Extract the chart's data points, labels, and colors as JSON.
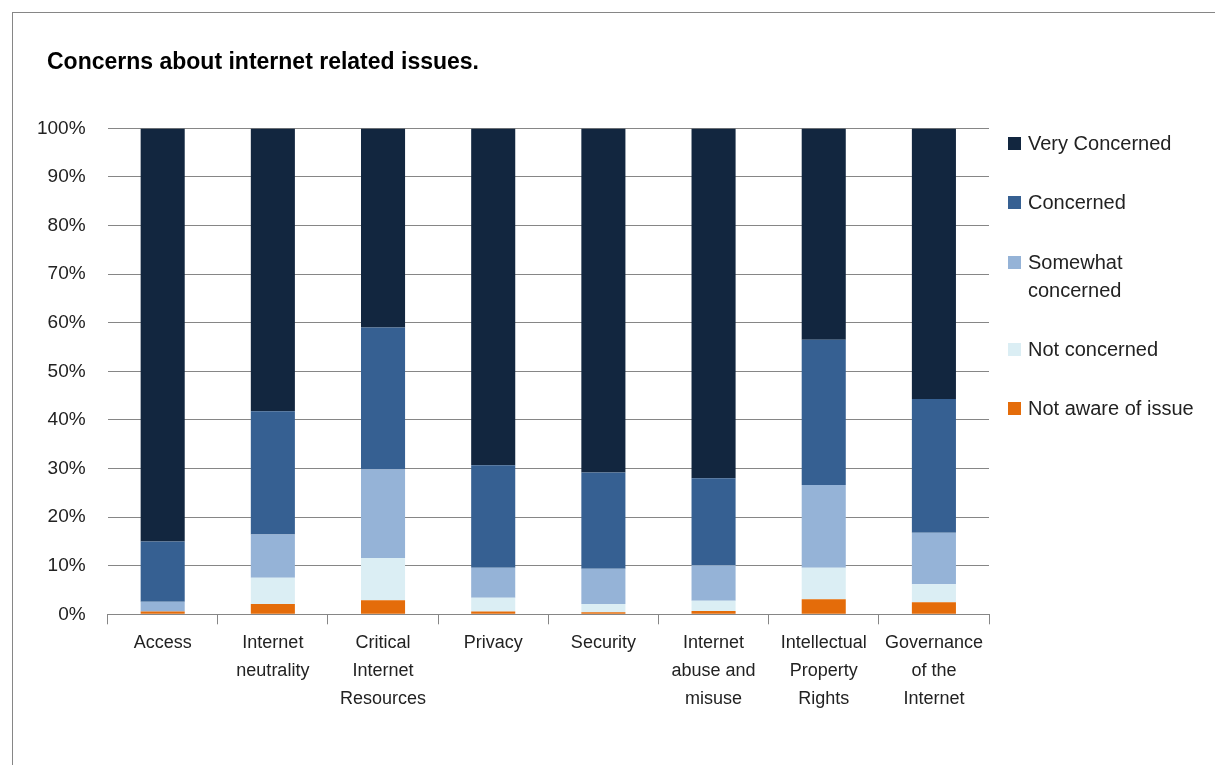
{
  "chart_data": {
    "type": "bar",
    "title": "Concerns about internet related issues.",
    "categories": [
      "Access",
      "Internet neutrality",
      "Critical Internet Resources",
      "Privacy",
      "Security",
      "Internet abuse and misuse",
      "Intellectual Property Rights",
      "Governance of the Internet"
    ],
    "stacked": true,
    "series": [
      {
        "name": "Not aware of issue",
        "color": "#e46c0a",
        "values": [
          0.6,
          2.1,
          2.9,
          0.6,
          0.4,
          0.7,
          3.1,
          2.5
        ]
      },
      {
        "name": "Not concerned",
        "color": "#dbeef4",
        "values": [
          0,
          5.4,
          8.7,
          2.8,
          1.7,
          2.1,
          6.5,
          3.7
        ]
      },
      {
        "name": "Somewhat concerned",
        "color": "#95b3d7",
        "values": [
          2.0,
          8.9,
          18.2,
          6.2,
          7.3,
          7.3,
          17.0,
          10.6
        ]
      },
      {
        "name": "Concerned",
        "color": "#366092",
        "values": [
          12.4,
          25.4,
          29.2,
          21.1,
          19.8,
          17.9,
          29.9,
          27.5
        ]
      },
      {
        "name": "Very Concerned",
        "color": "#12263f",
        "values": [
          85.0,
          58.2,
          41.0,
          69.3,
          70.8,
          72.0,
          43.5,
          55.7
        ]
      }
    ],
    "ylim": [
      0,
      100
    ],
    "yticks": [
      {
        "value": 0,
        "label": "0%"
      },
      {
        "value": 10,
        "label": "10%"
      },
      {
        "value": 20,
        "label": "20%"
      },
      {
        "value": 30,
        "label": "30%"
      },
      {
        "value": 40,
        "label": "40%"
      },
      {
        "value": 50,
        "label": "50%"
      },
      {
        "value": 60,
        "label": "60%"
      },
      {
        "value": 70,
        "label": "70%"
      },
      {
        "value": 80,
        "label": "80%"
      },
      {
        "value": 90,
        "label": "90%"
      },
      {
        "value": 100,
        "label": "100%"
      }
    ],
    "grid": "y",
    "legend": "right"
  }
}
